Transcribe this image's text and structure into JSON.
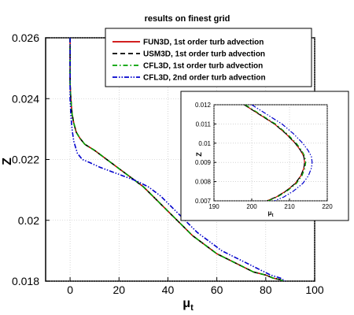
{
  "chart_data": [
    {
      "type": "line",
      "title": "results on finest grid",
      "xlabel": "μ",
      "xlabel_subscript": "t",
      "ylabel": "Z",
      "xlim": [
        -10,
        100
      ],
      "ylim": [
        0.018,
        0.026
      ],
      "xticks": [
        "0",
        "20",
        "40",
        "60",
        "80",
        "100"
      ],
      "yticks": [
        "0.018",
        "0.02",
        "0.022",
        "0.024",
        "0.026"
      ],
      "legend_position": "top-right",
      "grid": true,
      "series": [
        {
          "name": "FUN3D, 1st order turb advection",
          "color": "#cc0000",
          "dash": "solid",
          "x": [
            0,
            0,
            0,
            0.3,
            0.8,
            1.5,
            2.5,
            4,
            6,
            10,
            15,
            20,
            25,
            30,
            35,
            40,
            45,
            50,
            55,
            60,
            65,
            70,
            75,
            80,
            83,
            86,
            87
          ],
          "y": [
            0.026,
            0.025,
            0.0245,
            0.024,
            0.0235,
            0.0232,
            0.0229,
            0.0227,
            0.0225,
            0.0223,
            0.022,
            0.0217,
            0.0214,
            0.0211,
            0.0207,
            0.0203,
            0.0199,
            0.0195,
            0.0192,
            0.0189,
            0.0187,
            0.0185,
            0.0183,
            0.0182,
            0.0181,
            0.01805,
            0.018
          ]
        },
        {
          "name": "USM3D, 1st order turb advection",
          "color": "#000000",
          "dash": "dashed",
          "x": [
            0,
            0,
            0,
            0.3,
            0.8,
            1.5,
            2.5,
            4,
            6,
            10,
            15,
            20,
            25,
            30,
            35,
            40,
            45,
            50,
            55,
            60,
            65,
            70,
            75,
            80,
            83,
            86,
            87
          ],
          "y": [
            0.026,
            0.025,
            0.0245,
            0.024,
            0.0235,
            0.0232,
            0.0229,
            0.0227,
            0.0225,
            0.0223,
            0.022,
            0.0217,
            0.0214,
            0.0211,
            0.0207,
            0.0203,
            0.0199,
            0.0195,
            0.0192,
            0.0189,
            0.0187,
            0.0185,
            0.0183,
            0.0182,
            0.0181,
            0.01805,
            0.018
          ]
        },
        {
          "name": "CFL3D, 1st order turb advection",
          "color": "#00a000",
          "dash": "dashdot",
          "x": [
            0,
            0,
            0,
            0.3,
            0.8,
            1.5,
            2.5,
            4,
            6,
            10,
            15,
            20,
            25,
            30,
            35,
            40,
            45,
            50,
            55,
            60,
            65,
            70,
            75,
            80,
            83,
            86,
            87
          ],
          "y": [
            0.026,
            0.025,
            0.0245,
            0.024,
            0.0235,
            0.0232,
            0.0229,
            0.0227,
            0.0225,
            0.0223,
            0.022,
            0.0217,
            0.0214,
            0.0211,
            0.0207,
            0.0203,
            0.0199,
            0.0195,
            0.0192,
            0.0189,
            0.0187,
            0.0185,
            0.0183,
            0.0182,
            0.0181,
            0.01805,
            0.018
          ]
        },
        {
          "name": "CFL3D, 2nd order turb advection",
          "color": "#0000cc",
          "dash": "dashdotdot",
          "x": [
            0,
            0,
            0,
            0.3,
            0.8,
            1.5,
            3,
            5,
            8,
            12,
            17,
            22,
            27,
            32,
            37,
            42,
            47,
            52,
            57,
            62,
            67,
            72,
            77,
            82,
            86,
            88
          ],
          "y": [
            0.026,
            0.025,
            0.024,
            0.0235,
            0.023,
            0.0226,
            0.0222,
            0.022,
            0.0219,
            0.02175,
            0.0216,
            0.02145,
            0.0213,
            0.0211,
            0.0208,
            0.0204,
            0.02,
            0.0196,
            0.0193,
            0.019,
            0.0188,
            0.0186,
            0.0184,
            0.0182,
            0.0181,
            0.018
          ]
        }
      ]
    },
    {
      "type": "line",
      "title": "",
      "xlabel": "μ",
      "xlabel_subscript": "t",
      "ylabel": "Z",
      "xlim": [
        190,
        220
      ],
      "ylim": [
        0.007,
        0.012
      ],
      "xticks": [
        "190",
        "200",
        "210",
        "220"
      ],
      "yticks": [
        "0.007",
        "0.008",
        "0.009",
        "0.01",
        "0.011",
        "0.012"
      ],
      "grid": true,
      "series": [
        {
          "color": "#cc0000",
          "dash": "solid",
          "x": [
            198,
            202,
            206,
            209,
            211.5,
            213,
            213.8,
            214,
            213.8,
            213,
            211.5,
            209,
            206.5,
            204
          ],
          "y": [
            0.012,
            0.0115,
            0.011,
            0.0105,
            0.01,
            0.0096,
            0.0093,
            0.009,
            0.0087,
            0.0083,
            0.0079,
            0.0075,
            0.0072,
            0.007
          ]
        },
        {
          "color": "#000000",
          "dash": "dashed",
          "x": [
            198,
            202,
            206,
            209,
            211.5,
            213,
            213.8,
            214,
            213.8,
            213,
            211.5,
            209,
            206.5,
            204
          ],
          "y": [
            0.012,
            0.0115,
            0.011,
            0.0105,
            0.01,
            0.0096,
            0.0093,
            0.009,
            0.0087,
            0.0083,
            0.0079,
            0.0075,
            0.0072,
            0.007
          ]
        },
        {
          "color": "#00a000",
          "dash": "dashdot",
          "x": [
            198.3,
            202.3,
            206.3,
            209.3,
            211.8,
            213.3,
            214.1,
            214.3,
            214.1,
            213.3,
            211.8,
            209.3,
            206.8,
            204.3
          ],
          "y": [
            0.012,
            0.0115,
            0.011,
            0.0105,
            0.01,
            0.0096,
            0.0093,
            0.009,
            0.0087,
            0.0083,
            0.0079,
            0.0075,
            0.0072,
            0.007
          ]
        },
        {
          "color": "#0000cc",
          "dash": "dashdotdot",
          "x": [
            200,
            204,
            208,
            211,
            213.5,
            215,
            215.8,
            216,
            215.8,
            215,
            213.5,
            211,
            208.5,
            206
          ],
          "y": [
            0.012,
            0.0115,
            0.011,
            0.0105,
            0.01,
            0.0096,
            0.0093,
            0.009,
            0.0087,
            0.0083,
            0.0079,
            0.0075,
            0.0072,
            0.007
          ]
        }
      ]
    }
  ]
}
